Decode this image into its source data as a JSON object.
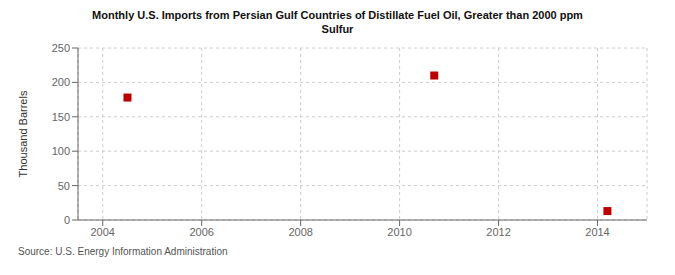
{
  "chart_data": {
    "type": "scatter",
    "title": "Monthly U.S. Imports from Persian Gulf Countries of Distillate Fuel Oil, Greater than 2000 ppm\nSulfur",
    "ylabel": "Thousand Barrels",
    "annotations": [
      "Source: U.S. Energy Information Administration"
    ],
    "x": [
      2004.5,
      2010.7,
      2014.2
    ],
    "values": [
      178,
      210,
      13
    ],
    "color": "#bb0000",
    "marker": "square",
    "xlim": [
      2003.5,
      2015.0
    ],
    "ylim": [
      0,
      250
    ],
    "xticks": [
      2004,
      2006,
      2008,
      2010,
      2012,
      2014
    ],
    "yticks": [
      0,
      50,
      100,
      150,
      200,
      250
    ],
    "grid": true
  }
}
